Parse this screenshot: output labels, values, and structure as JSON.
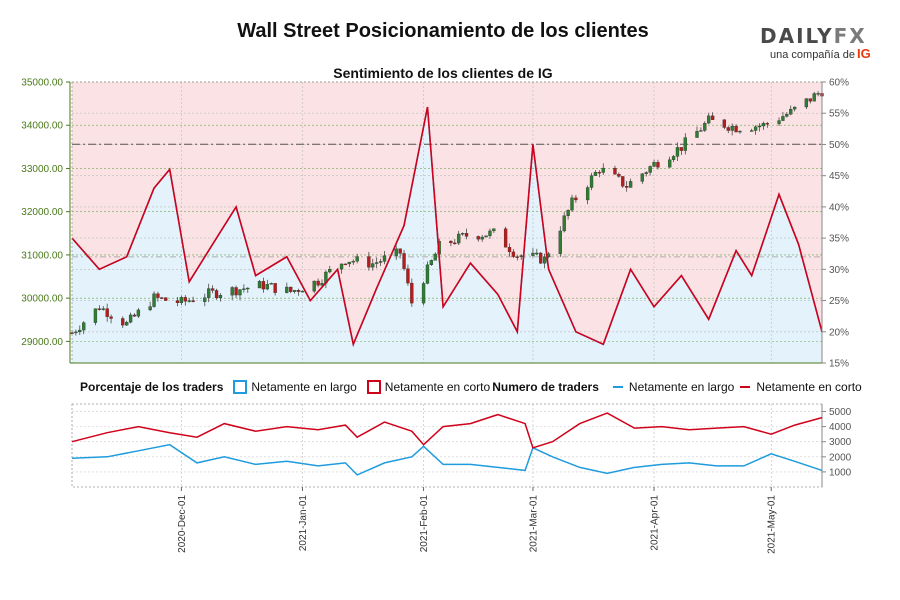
{
  "title": "Wall Street Posicionamiento de los clientes",
  "subtitle": "Sentimiento de los clientes de IG",
  "logo": {
    "brand_left": "DAILY",
    "brand_right": "FX",
    "tagline": "una compañía de",
    "tagline_brand": "IG"
  },
  "legend": {
    "pct_title": "Porcentaje de los traders",
    "pct_long": "Netamente en largo",
    "pct_short": "Netamente en corto",
    "num_title": "Numero de traders",
    "num_long": "Netamente en largo",
    "num_short": "Netamente en corto"
  },
  "colors": {
    "long": "#1f9bde",
    "short": "#d0021b",
    "up_candle": "#2e7d32",
    "down_candle": "#b71c1c",
    "fill_short": "#fbe3e5",
    "fill_long": "#e4f2fb",
    "price_axis": "#4a7a1a"
  },
  "chart_data": {
    "type": "line",
    "x_range": [
      "2020-11-03",
      "2021-05-14"
    ],
    "x_ticks": [
      "2020-Dec-01",
      "2021-Jan-01",
      "2021-Feb-01",
      "2021-Mar-01",
      "2021-Apr-01",
      "2021-May-01"
    ],
    "price_axis": {
      "ylim": [
        28500,
        35000
      ],
      "ticks": [
        "29000.00",
        "30000.00",
        "31000.00",
        "32000.00",
        "33000.00",
        "34000.00",
        "35000.00"
      ]
    },
    "pct_axis": {
      "ylim": [
        15,
        60
      ],
      "ticks": [
        "15%",
        "20%",
        "25%",
        "30%",
        "35%",
        "40%",
        "45%",
        "50%",
        "55%",
        "60%"
      ]
    },
    "count_axis": {
      "ylim": [
        0,
        5500
      ],
      "ticks": [
        "1000",
        "2000",
        "3000",
        "4000",
        "5000"
      ]
    },
    "price_keypoints": [
      [
        "2020-11-03",
        29200
      ],
      [
        "2020-11-10",
        29800
      ],
      [
        "2020-11-17",
        29400
      ],
      [
        "2020-11-24",
        30000
      ],
      [
        "2020-12-01",
        29900
      ],
      [
        "2020-12-08",
        30100
      ],
      [
        "2020-12-15",
        30200
      ],
      [
        "2020-12-22",
        30300
      ],
      [
        "2020-12-29",
        30150
      ],
      [
        "2021-01-05",
        30400
      ],
      [
        "2021-01-12",
        30900
      ],
      [
        "2021-01-19",
        30800
      ],
      [
        "2021-01-26",
        31050
      ],
      [
        "2021-01-29",
        29900
      ],
      [
        "2021-02-05",
        31200
      ],
      [
        "2021-02-12",
        31450
      ],
      [
        "2021-02-19",
        31500
      ],
      [
        "2021-02-25",
        31000
      ],
      [
        "2021-03-04",
        30900
      ],
      [
        "2021-03-11",
        32200
      ],
      [
        "2021-03-18",
        33000
      ],
      [
        "2021-03-25",
        32600
      ],
      [
        "2021-04-01",
        33100
      ],
      [
        "2021-04-08",
        33500
      ],
      [
        "2021-04-15",
        34100
      ],
      [
        "2021-04-22",
        33950
      ],
      [
        "2021-04-29",
        34000
      ],
      [
        "2021-05-06",
        34300
      ],
      [
        "2021-05-14",
        34800
      ]
    ],
    "series": [
      {
        "name": "Netamente en largo",
        "values": [
          [
            "2020-11-03",
            35
          ],
          [
            "2020-11-10",
            30
          ],
          [
            "2020-11-17",
            32
          ],
          [
            "2020-11-24",
            43
          ],
          [
            "2020-11-28",
            46
          ],
          [
            "2020-12-03",
            28
          ],
          [
            "2020-12-10",
            35
          ],
          [
            "2020-12-15",
            40
          ],
          [
            "2020-12-20",
            29
          ],
          [
            "2020-12-28",
            32
          ],
          [
            "2021-01-03",
            25
          ],
          [
            "2021-01-10",
            30
          ],
          [
            "2021-01-14",
            18
          ],
          [
            "2021-01-20",
            27
          ],
          [
            "2021-01-27",
            37
          ],
          [
            "2021-02-02",
            56
          ],
          [
            "2021-02-06",
            24
          ],
          [
            "2021-02-13",
            31
          ],
          [
            "2021-02-20",
            26
          ],
          [
            "2021-02-25",
            20
          ],
          [
            "2021-03-01",
            50
          ],
          [
            "2021-03-05",
            30
          ],
          [
            "2021-03-12",
            20
          ],
          [
            "2021-03-19",
            18
          ],
          [
            "2021-03-26",
            30
          ],
          [
            "2021-04-01",
            24
          ],
          [
            "2021-04-08",
            29
          ],
          [
            "2021-04-15",
            22
          ],
          [
            "2021-04-22",
            33
          ],
          [
            "2021-04-26",
            29
          ],
          [
            "2021-05-03",
            42
          ],
          [
            "2021-05-08",
            34
          ],
          [
            "2021-05-14",
            20
          ]
        ]
      },
      {
        "name": "Netamente en corto",
        "values": [
          [
            "2020-11-03",
            1900
          ],
          [
            "2020-11-12",
            2000
          ],
          [
            "2020-11-20",
            2400
          ],
          [
            "2020-11-28",
            2800
          ],
          [
            "2020-12-05",
            1600
          ],
          [
            "2020-12-12",
            2000
          ],
          [
            "2020-12-20",
            1500
          ],
          [
            "2020-12-28",
            1700
          ],
          [
            "2021-01-05",
            1400
          ],
          [
            "2021-01-12",
            1600
          ],
          [
            "2021-01-15",
            800
          ],
          [
            "2021-01-22",
            1600
          ],
          [
            "2021-01-29",
            2000
          ],
          [
            "2021-02-01",
            2700
          ],
          [
            "2021-02-06",
            1500
          ],
          [
            "2021-02-13",
            1500
          ],
          [
            "2021-02-20",
            1300
          ],
          [
            "2021-02-27",
            1100
          ],
          [
            "2021-03-01",
            2600
          ],
          [
            "2021-03-06",
            2000
          ],
          [
            "2021-03-13",
            1300
          ],
          [
            "2021-03-20",
            900
          ],
          [
            "2021-03-27",
            1300
          ],
          [
            "2021-04-03",
            1500
          ],
          [
            "2021-04-10",
            1600
          ],
          [
            "2021-04-17",
            1400
          ],
          [
            "2021-04-24",
            1400
          ],
          [
            "2021-05-01",
            2200
          ],
          [
            "2021-05-07",
            1700
          ],
          [
            "2021-05-14",
            1100
          ]
        ]
      }
    ],
    "counts_short": [
      [
        "2020-11-03",
        3000
      ],
      [
        "2020-11-12",
        3600
      ],
      [
        "2020-11-20",
        4000
      ],
      [
        "2020-11-28",
        3600
      ],
      [
        "2020-12-05",
        3300
      ],
      [
        "2020-12-12",
        4200
      ],
      [
        "2020-12-20",
        3700
      ],
      [
        "2020-12-28",
        4000
      ],
      [
        "2021-01-05",
        3800
      ],
      [
        "2021-01-12",
        4100
      ],
      [
        "2021-01-15",
        3300
      ],
      [
        "2021-01-22",
        4300
      ],
      [
        "2021-01-29",
        3700
      ],
      [
        "2021-02-01",
        2800
      ],
      [
        "2021-02-06",
        4000
      ],
      [
        "2021-02-13",
        4200
      ],
      [
        "2021-02-20",
        4800
      ],
      [
        "2021-02-27",
        4200
      ],
      [
        "2021-03-01",
        2600
      ],
      [
        "2021-03-06",
        3000
      ],
      [
        "2021-03-13",
        4200
      ],
      [
        "2021-03-20",
        4900
      ],
      [
        "2021-03-27",
        3900
      ],
      [
        "2021-04-03",
        4000
      ],
      [
        "2021-04-10",
        3800
      ],
      [
        "2021-04-17",
        3900
      ],
      [
        "2021-04-24",
        4000
      ],
      [
        "2021-05-01",
        3500
      ],
      [
        "2021-05-07",
        4100
      ],
      [
        "2021-05-14",
        4600
      ]
    ],
    "ref_lines": {
      "price": 33560,
      "pct_mid": 32
    }
  }
}
